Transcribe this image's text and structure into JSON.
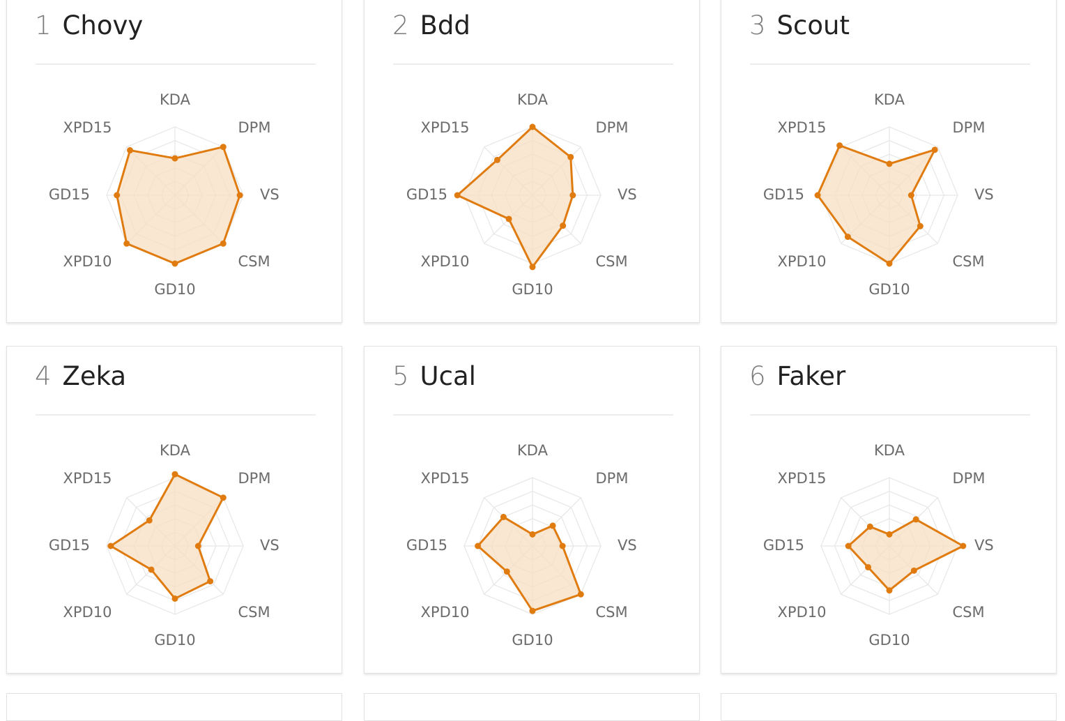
{
  "axes": [
    "KDA",
    "DPM",
    "VS",
    "CSM",
    "GD10",
    "XPD10",
    "GD15",
    "XPD15"
  ],
  "colors": {
    "stroke": "#e07b10",
    "fill": "#f7dfc3",
    "grid": "#e6e6e6",
    "label": "#6b6b6b"
  },
  "chart_data": [
    {
      "type": "radar",
      "rank": "1",
      "title": "Chovy",
      "categories": [
        "KDA",
        "DPM",
        "VS",
        "CSM",
        "GD10",
        "XPD10",
        "GD15",
        "XPD15"
      ],
      "values": [
        0.54,
        1.0,
        0.95,
        1.0,
        1.0,
        1.0,
        0.85,
        0.93
      ],
      "ylim": [
        0,
        1
      ]
    },
    {
      "type": "radar",
      "rank": "2",
      "title": "Bdd",
      "categories": [
        "KDA",
        "DPM",
        "VS",
        "CSM",
        "GD10",
        "XPD10",
        "GD15",
        "XPD15"
      ],
      "values": [
        1.0,
        0.79,
        0.59,
        0.63,
        1.05,
        0.49,
        1.1,
        0.73
      ],
      "ylim": [
        0,
        1
      ]
    },
    {
      "type": "radar",
      "rank": "3",
      "title": "Scout",
      "categories": [
        "KDA",
        "DPM",
        "VS",
        "CSM",
        "GD10",
        "XPD10",
        "GD15",
        "XPD15"
      ],
      "values": [
        0.46,
        0.94,
        0.32,
        0.64,
        1.0,
        0.86,
        1.05,
        1.03
      ],
      "ylim": [
        0,
        1
      ]
    },
    {
      "type": "radar",
      "rank": "4",
      "title": "Zeka",
      "categories": [
        "KDA",
        "DPM",
        "VS",
        "CSM",
        "GD10",
        "XPD10",
        "GD15",
        "XPD15"
      ],
      "values": [
        1.05,
        1.0,
        0.34,
        0.73,
        0.77,
        0.49,
        0.94,
        0.53
      ],
      "ylim": [
        0,
        1
      ]
    },
    {
      "type": "radar",
      "rank": "5",
      "title": "Ucal",
      "categories": [
        "KDA",
        "DPM",
        "VS",
        "CSM",
        "GD10",
        "XPD10",
        "GD15",
        "XPD15"
      ],
      "values": [
        0.17,
        0.42,
        0.44,
        1.0,
        0.95,
        0.53,
        0.8,
        0.6
      ],
      "ylim": [
        0,
        1
      ]
    },
    {
      "type": "radar",
      "rank": "6",
      "title": "Faker",
      "categories": [
        "KDA",
        "DPM",
        "VS",
        "CSM",
        "GD10",
        "XPD10",
        "GD15",
        "XPD15"
      ],
      "values": [
        0.17,
        0.55,
        1.08,
        0.51,
        0.65,
        0.44,
        0.6,
        0.4
      ],
      "ylim": [
        0,
        1
      ]
    }
  ]
}
